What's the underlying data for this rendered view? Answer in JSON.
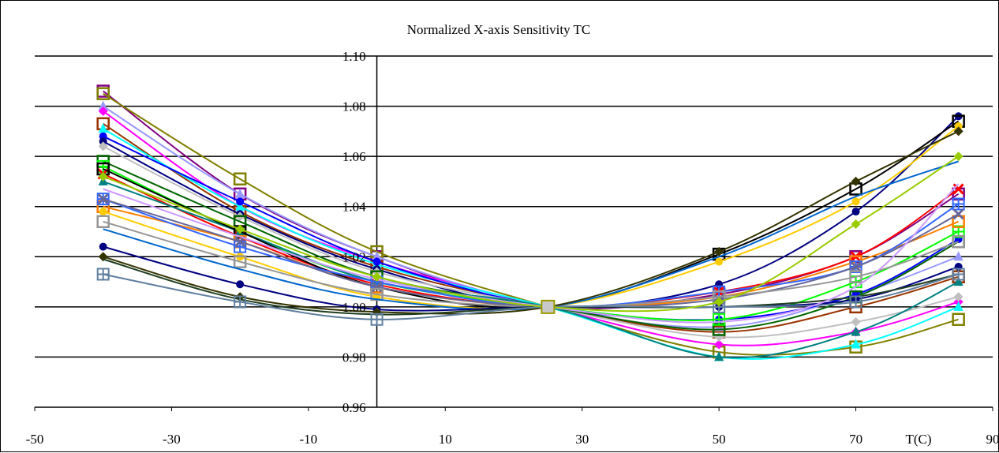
{
  "chart_data": {
    "type": "line",
    "title": "Normalized X-axis Sensitivity TC",
    "xlabel": "T(C)",
    "ylabel": "",
    "xlim": [
      -50,
      90
    ],
    "ylim": [
      0.96,
      1.1
    ],
    "x_ticks": [
      "-50",
      "-30",
      "-10",
      "10",
      "30",
      "50",
      "70",
      "90"
    ],
    "y_ticks": [
      "0.96",
      "0.98",
      "1.00",
      "1.02",
      "1.04",
      "1.06",
      "1.08",
      "1.10"
    ],
    "x": [
      -40,
      -20,
      0,
      25,
      50,
      70,
      85
    ],
    "grid": true,
    "legend": "none",
    "series": [
      {
        "color": "#800080",
        "marker": "square",
        "values": [
          1.086,
          1.045,
          1.02,
          1.0,
          1.005,
          1.02,
          1.045
        ]
      },
      {
        "color": "#808000",
        "marker": "square",
        "values": [
          1.085,
          1.051,
          1.022,
          1.0,
          0.982,
          0.984,
          0.995
        ]
      },
      {
        "color": "#9999ff",
        "marker": "triangle",
        "values": [
          1.08,
          1.045,
          1.02,
          1.0,
          0.992,
          1.005,
          1.02
        ]
      },
      {
        "color": "#ff00ff",
        "marker": "diamond",
        "values": [
          1.078,
          1.04,
          1.018,
          1.0,
          0.985,
          0.99,
          1.002
        ]
      },
      {
        "color": "#993300",
        "marker": "square",
        "values": [
          1.073,
          1.038,
          1.016,
          1.0,
          0.99,
          1.0,
          1.012
        ]
      },
      {
        "color": "#00ffff",
        "marker": "triangle",
        "values": [
          1.071,
          1.04,
          1.017,
          1.0,
          0.98,
          0.985,
          1.0
        ]
      },
      {
        "color": "#0000ff",
        "marker": "circle",
        "values": [
          1.068,
          1.042,
          1.018,
          1.0,
          0.995,
          1.005,
          1.027
        ]
      },
      {
        "color": "#000080",
        "marker": "circle",
        "values": [
          1.066,
          1.037,
          1.015,
          1.0,
          1.009,
          1.038,
          1.076
        ]
      },
      {
        "color": "#c0c0c0",
        "marker": "diamond",
        "values": [
          1.064,
          1.036,
          1.014,
          1.0,
          0.988,
          0.994,
          1.004
        ]
      },
      {
        "color": "#006400",
        "marker": "square",
        "values": [
          1.058,
          1.034,
          1.012,
          1.0,
          0.991,
          1.004,
          1.026
        ]
      },
      {
        "color": "#00ff00",
        "marker": "cross",
        "values": [
          1.056,
          1.03,
          1.01,
          1.0,
          0.995,
          1.01,
          1.03
        ]
      },
      {
        "color": "#ff0000",
        "marker": "x",
        "values": [
          1.053,
          1.028,
          1.009,
          1.0,
          1.006,
          1.02,
          1.047
        ]
      },
      {
        "color": "#008080",
        "marker": "triangle",
        "values": [
          1.05,
          1.03,
          1.01,
          1.0,
          0.98,
          0.99,
          1.01
        ]
      },
      {
        "color": "#000000",
        "marker": "square",
        "values": [
          1.055,
          1.03,
          1.008,
          1.0,
          1.021,
          1.047,
          1.074
        ]
      },
      {
        "color": "#ff8000",
        "marker": "square",
        "values": [
          1.04,
          1.026,
          1.008,
          1.0,
          1.004,
          1.018,
          1.034
        ]
      },
      {
        "color": "#3366ff",
        "marker": "cross",
        "values": [
          1.043,
          1.024,
          1.01,
          1.0,
          1.006,
          1.016,
          1.041
        ]
      },
      {
        "color": "#666699",
        "marker": "x",
        "values": [
          1.043,
          1.026,
          1.008,
          1.0,
          1.003,
          1.016,
          1.037
        ]
      },
      {
        "color": "#ffcc00",
        "marker": "circle",
        "values": [
          1.038,
          1.02,
          1.004,
          1.0,
          1.018,
          1.042,
          1.072
        ]
      },
      {
        "color": "#969696",
        "marker": "square",
        "values": [
          1.034,
          1.018,
          1.005,
          1.0,
          1.004,
          1.012,
          1.026
        ]
      },
      {
        "color": "#0066cc",
        "marker": "none",
        "values": [
          1.031,
          1.015,
          1.003,
          1.0,
          1.02,
          1.044,
          1.058
        ]
      },
      {
        "color": "#000080",
        "marker": "circle",
        "values": [
          1.024,
          1.009,
          0.999,
          1.0,
          1.0,
          1.003,
          1.016
        ]
      },
      {
        "color": "#333300",
        "marker": "diamond",
        "values": [
          1.02,
          1.004,
          0.998,
          1.0,
          1.022,
          1.05,
          1.07
        ]
      },
      {
        "color": "#1f3d1f",
        "marker": "none",
        "values": [
          1.019,
          1.003,
          0.997,
          1.0,
          1.0,
          1.004,
          1.013
        ]
      },
      {
        "color": "#5f7f9f",
        "marker": "cross",
        "values": [
          1.013,
          1.002,
          0.995,
          1.0,
          1.0,
          1.002,
          1.013
        ]
      },
      {
        "color": "#cc99ff",
        "marker": "none",
        "values": [
          1.047,
          1.028,
          1.011,
          1.0,
          0.994,
          1.008,
          1.049
        ]
      },
      {
        "color": "#99cc00",
        "marker": "diamond",
        "values": [
          1.052,
          1.031,
          1.012,
          1.0,
          1.002,
          1.033,
          1.06
        ]
      }
    ]
  }
}
